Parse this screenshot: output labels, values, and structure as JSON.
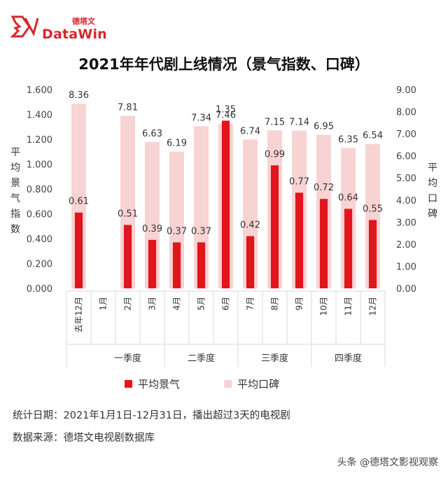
{
  "brand": {
    "name": "DataWin",
    "cn": "德塔文"
  },
  "chart_data": {
    "type": "bar",
    "title": "2021年年代剧上线情况（景气指数、口碑）",
    "categories": [
      "去年12月",
      "1月",
      "2月",
      "3月",
      "4月",
      "5月",
      "6月",
      "7月",
      "8月",
      "9月",
      "10月",
      "11月",
      "12月"
    ],
    "groups": [
      {
        "label": "一季度",
        "from": 1,
        "to": 3
      },
      {
        "label": "二季度",
        "from": 4,
        "to": 6
      },
      {
        "label": "三季度",
        "from": 7,
        "to": 9
      },
      {
        "label": "四季度",
        "from": 10,
        "to": 12
      }
    ],
    "series": [
      {
        "name": "平均景气",
        "axis": "left",
        "color": "#e0161c",
        "values": [
          0.61,
          null,
          0.51,
          0.39,
          0.37,
          0.37,
          1.35,
          0.42,
          0.99,
          0.77,
          0.72,
          0.64,
          0.55
        ],
        "labels": [
          "0.61",
          "",
          "0.51",
          "0.39",
          "0.37",
          "0.37",
          "1.35",
          "0.42",
          "0.99",
          "0.77",
          "0.72",
          "0.64",
          "0.55"
        ]
      },
      {
        "name": "平均口碑",
        "axis": "right",
        "color": "#f7d3d3",
        "values": [
          8.36,
          null,
          7.81,
          6.63,
          6.19,
          7.34,
          7.46,
          6.74,
          7.15,
          7.14,
          6.95,
          6.35,
          6.54
        ],
        "labels": [
          "8.36",
          "",
          "7.81",
          "6.63",
          "6.19",
          "7.34",
          "7.46",
          "6.74",
          "7.15",
          "7.14",
          "6.95",
          "6.35",
          "6.54"
        ]
      }
    ],
    "ylabel_left": "平均景气指数",
    "ylabel_right": "平均口碑",
    "ylim_left": [
      0,
      1.6
    ],
    "ylim_right": [
      0,
      9
    ],
    "yticks_left": [
      "0.000",
      "0.200",
      "0.400",
      "0.600",
      "0.800",
      "1.000",
      "1.200",
      "1.400",
      "1.600"
    ],
    "yticks_right": [
      "0.00",
      "1.00",
      "2.00",
      "3.00",
      "4.00",
      "5.00",
      "6.00",
      "7.00",
      "8.00",
      "9.00"
    ],
    "legend_position": "bottom",
    "grid": false
  },
  "notes": {
    "date": "统计日期：2021年1月1日-12月31日，播出超过3天的电视剧",
    "source": "数据来源：德塔文电视剧数据库"
  },
  "watermark": "头条 @德塔文影视观察"
}
